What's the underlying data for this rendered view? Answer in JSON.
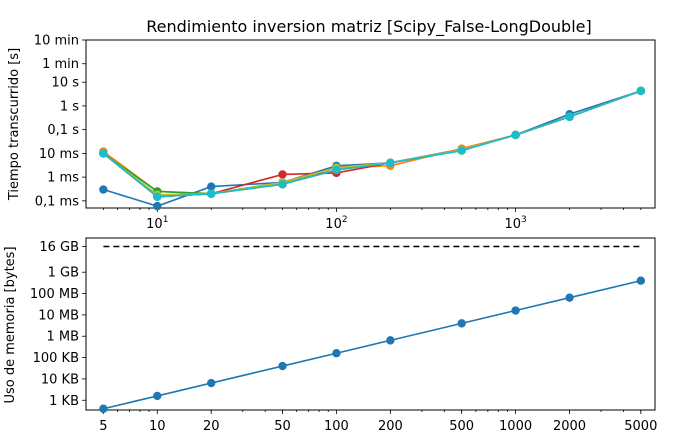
{
  "chart_data": [
    {
      "type": "line",
      "title": "Rendimiento inversion matriz [Scipy_False-LongDouble]",
      "ylabel": "Tiempo transcurrido [s]",
      "xlabel": "",
      "x_scale": "log",
      "y_scale": "log",
      "xlim": [
        4,
        6000
      ],
      "ylim": [
        5e-05,
        600
      ],
      "x_ticks": [
        {
          "value": 10,
          "base": "10",
          "exp": "1"
        },
        {
          "value": 100,
          "base": "10",
          "exp": "2"
        },
        {
          "value": 1000,
          "base": "10",
          "exp": "3"
        }
      ],
      "y_ticks": [
        {
          "value": 0.0001,
          "label": "0,1 ms"
        },
        {
          "value": 0.001,
          "label": "1 ms"
        },
        {
          "value": 0.01,
          "label": "10 ms"
        },
        {
          "value": 0.1,
          "label": "0,1 s"
        },
        {
          "value": 1,
          "label": "1 s"
        },
        {
          "value": 10,
          "label": "10 s"
        },
        {
          "value": 60,
          "label": "1 min"
        },
        {
          "value": 600,
          "label": "10 min"
        }
      ],
      "x": [
        5,
        10,
        20,
        50,
        100,
        200,
        500,
        1000,
        2000,
        5000
      ],
      "series": [
        {
          "color": "#1f77b4",
          "values": [
            0.0003,
            6e-05,
            0.0004,
            0.0006,
            0.003,
            0.004,
            0.015,
            0.06,
            0.45,
            4.3
          ]
        },
        {
          "color": "#ff7f0e",
          "values": [
            0.012,
            0.00025,
            0.0002,
            0.0005,
            0.0025,
            0.003,
            0.016,
            0.06,
            0.35,
            4.3
          ]
        },
        {
          "color": "#2ca02c",
          "values": [
            0.01,
            0.00025,
            0.0002,
            0.0005,
            0.002,
            0.004,
            0.014,
            0.06,
            0.35,
            4.3
          ]
        },
        {
          "color": "#d62728",
          "values": [
            0.01,
            0.00015,
            0.0002,
            0.0013,
            0.0015,
            0.004,
            0.014,
            0.06,
            0.35,
            4.3
          ]
        },
        {
          "color": "#9467bd",
          "values": [
            0.01,
            0.00015,
            0.0002,
            0.0006,
            0.0025,
            0.004,
            0.014,
            0.06,
            0.35,
            4.3
          ]
        },
        {
          "color": "#8c564b",
          "values": [
            0.01,
            0.00015,
            0.0002,
            0.0006,
            0.0025,
            0.004,
            0.014,
            0.06,
            0.35,
            4.3
          ]
        },
        {
          "color": "#e377c2",
          "values": [
            0.01,
            0.00015,
            0.0002,
            0.0006,
            0.0025,
            0.004,
            0.014,
            0.06,
            0.35,
            4.3
          ]
        },
        {
          "color": "#7f7f7f",
          "values": [
            0.01,
            0.00015,
            0.0002,
            0.0006,
            0.0025,
            0.004,
            0.014,
            0.06,
            0.35,
            4.3
          ]
        },
        {
          "color": "#bcbd22",
          "values": [
            0.01,
            0.00018,
            0.0002,
            0.0006,
            0.0025,
            0.004,
            0.014,
            0.06,
            0.35,
            4.3
          ]
        },
        {
          "color": "#17becf",
          "values": [
            0.01,
            0.00015,
            0.0002,
            0.0005,
            0.002,
            0.004,
            0.013,
            0.06,
            0.35,
            4.3
          ]
        }
      ]
    },
    {
      "type": "line",
      "title": "",
      "ylabel": "Uso de memoria [bytes]",
      "xlabel": "",
      "x_scale": "log",
      "y_scale": "log",
      "xlim": [
        4,
        6000
      ],
      "ylim": [
        350,
        40000000000
      ],
      "x_ticks": [
        {
          "value": 5,
          "label": "5"
        },
        {
          "value": 10,
          "label": "10"
        },
        {
          "value": 20,
          "label": "20"
        },
        {
          "value": 50,
          "label": "50"
        },
        {
          "value": 100,
          "label": "100"
        },
        {
          "value": 200,
          "label": "200"
        },
        {
          "value": 500,
          "label": "500"
        },
        {
          "value": 1000,
          "label": "1000"
        },
        {
          "value": 2000,
          "label": "2000"
        },
        {
          "value": 5000,
          "label": "5000"
        }
      ],
      "y_ticks": [
        {
          "value": 1000,
          "label": "1 KB"
        },
        {
          "value": 10000,
          "label": "10 KB"
        },
        {
          "value": 100000,
          "label": "100 KB"
        },
        {
          "value": 1000000,
          "label": "1 MB"
        },
        {
          "value": 10000000,
          "label": "10 MB"
        },
        {
          "value": 100000000,
          "label": "100 MB"
        },
        {
          "value": 1000000000,
          "label": "1 GB"
        },
        {
          "value": 16000000000,
          "label": "16 GB"
        }
      ],
      "x": [
        5,
        10,
        20,
        50,
        100,
        200,
        500,
        1000,
        2000,
        5000
      ],
      "series": [
        {
          "color": "#1f77b4",
          "values": [
            400,
            1600,
            6400,
            40000,
            160000,
            640000,
            4000000,
            16000000,
            64000000,
            400000000
          ]
        }
      ],
      "reference_line": {
        "value": 16000000000,
        "color": "#000000",
        "style": "dashed",
        "x_range": [
          5,
          5000
        ]
      }
    }
  ]
}
